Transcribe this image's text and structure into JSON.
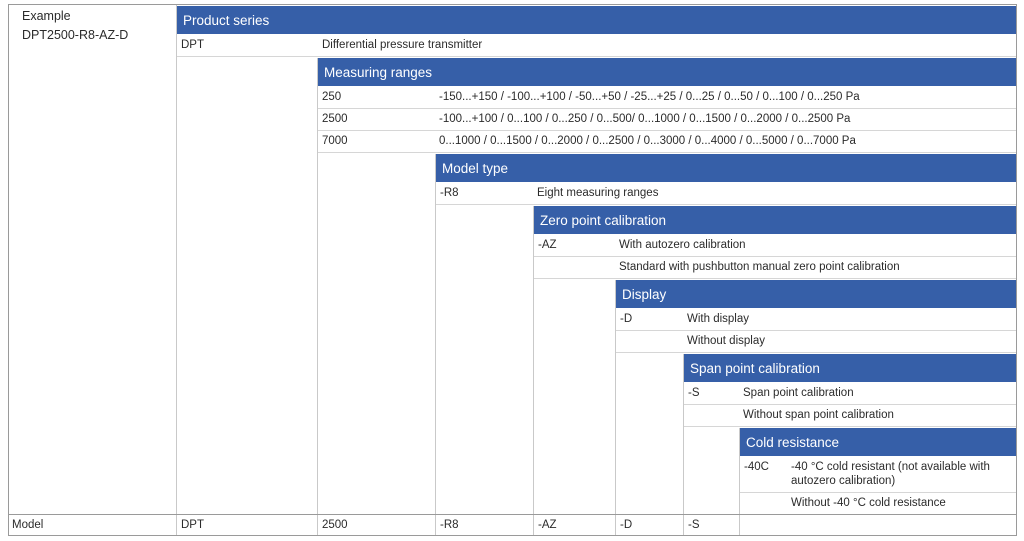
{
  "example": {
    "label": "Example",
    "code": "DPT2500-R8-AZ-D"
  },
  "sections": {
    "product_series": {
      "title": "Product series",
      "rows": [
        {
          "code": "DPT",
          "desc": "Differential pressure transmitter"
        }
      ]
    },
    "measuring_ranges": {
      "title": "Measuring ranges",
      "rows": [
        {
          "code": "250",
          "desc": "-150...+150 / -100...+100 / -50...+50 / -25...+25 / 0...25 / 0...50 / 0...100 / 0...250 Pa"
        },
        {
          "code": "2500",
          "desc": "-100...+100 / 0...100 / 0...250 / 0...500/ 0...1000 / 0...1500 / 0...2000 / 0...2500 Pa"
        },
        {
          "code": "7000",
          "desc": "0...1000 / 0...1500 / 0...2000 / 0...2500 / 0...3000 / 0...4000 / 0...5000 / 0...7000 Pa"
        }
      ]
    },
    "model_type": {
      "title": "Model type",
      "rows": [
        {
          "code": "-R8",
          "desc": "Eight measuring ranges"
        }
      ]
    },
    "zero_point": {
      "title": "Zero point calibration",
      "rows": [
        {
          "code": "-AZ",
          "desc": "With autozero calibration"
        },
        {
          "code": "",
          "desc": "Standard with pushbutton manual zero point calibration"
        }
      ]
    },
    "display": {
      "title": "Display",
      "rows": [
        {
          "code": "-D",
          "desc": "With display"
        },
        {
          "code": "",
          "desc": "Without display"
        }
      ]
    },
    "span_point": {
      "title": "Span point calibration",
      "rows": [
        {
          "code": "-S",
          "desc": "Span point calibration"
        },
        {
          "code": "",
          "desc": "Without span point calibration"
        }
      ]
    },
    "cold_resistance": {
      "title": "Cold resistance",
      "rows": [
        {
          "code": "-40C",
          "desc": "-40 °C cold resistant (not available with autozero calibration)"
        },
        {
          "code": "",
          "desc": "Without -40 °C cold resistance"
        }
      ]
    }
  },
  "model_row": {
    "label": "Model",
    "values": [
      "DPT",
      "2500",
      "-R8",
      "-AZ",
      "-D",
      "-S",
      ""
    ]
  },
  "colors": {
    "header_bg": "#365fa8",
    "header_text": "#ffffff",
    "border": "#9a9a9a",
    "divider": "#d6d6d6"
  }
}
